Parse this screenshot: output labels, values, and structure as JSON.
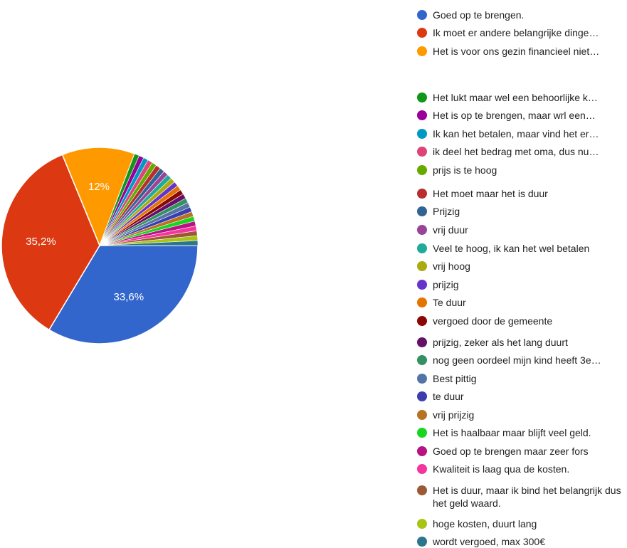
{
  "chart_data": {
    "type": "pie",
    "series": [
      {
        "name": "Goed op te brengen.",
        "value": 33.6,
        "label": "33,6%",
        "color": "#3366cc"
      },
      {
        "name": "Ik moet er andere belangrijke dinge…",
        "value": 35.2,
        "label": "35,2%",
        "color": "#dc3912"
      },
      {
        "name": "Het is voor ons gezin financieel niet…",
        "value": 12.0,
        "label": "12%",
        "color": "#ff9900"
      },
      {
        "name": "Het lukt maar wel een behoorlijke k…",
        "value": 0.8,
        "color": "#109618"
      },
      {
        "name": "Het is op te brengen, maar wrl een…",
        "value": 0.8,
        "color": "#990099"
      },
      {
        "name": "Ik kan het betalen, maar vind het er…",
        "value": 0.8,
        "color": "#0099c6"
      },
      {
        "name": "ik deel het bedrag met oma, dus nu…",
        "value": 0.8,
        "color": "#dd4477"
      },
      {
        "name": "prijs is te hoog",
        "value": 0.8,
        "color": "#66aa00"
      },
      {
        "name": "Het moet maar het is duur",
        "value": 0.8,
        "color": "#b82e2e"
      },
      {
        "name": "Prijzig",
        "value": 0.8,
        "color": "#316395"
      },
      {
        "name": "vrij duur",
        "value": 0.8,
        "color": "#994499"
      },
      {
        "name": "Veel te hoog, ik kan het wel betalen",
        "value": 0.8,
        "color": "#22aa99"
      },
      {
        "name": "vrij hoog",
        "value": 0.8,
        "color": "#aaaa11"
      },
      {
        "name": "prijzig",
        "value": 0.8,
        "color": "#6633cc"
      },
      {
        "name": "Te duur",
        "value": 0.8,
        "color": "#e67300"
      },
      {
        "name": "vergoed door de gemeente",
        "value": 0.8,
        "color": "#8b0707"
      },
      {
        "name": "prijzig, zeker als het lang duurt",
        "value": 0.8,
        "color": "#651067"
      },
      {
        "name": "nog geen oordeel mijn kind heeft 3e…",
        "value": 0.8,
        "color": "#329262"
      },
      {
        "name": "Best pittig",
        "value": 0.8,
        "color": "#5574a6"
      },
      {
        "name": "te duur",
        "value": 0.8,
        "color": "#3b3eac"
      },
      {
        "name": "vrij prijzig",
        "value": 0.8,
        "color": "#b77322"
      },
      {
        "name": "Het is haalbaar maar blijft veel geld.",
        "value": 0.8,
        "color": "#16d620"
      },
      {
        "name": "Goed op te brengen maar zeer fors",
        "value": 0.8,
        "color": "#b91383"
      },
      {
        "name": "Kwaliteit is laag qua de kosten.",
        "value": 0.8,
        "color": "#f4359e"
      },
      {
        "name": "Het is duur, maar ik bind het belangrijk dus het geld waard.",
        "value": 0.8,
        "color": "#9c5935"
      },
      {
        "name": "hoge kosten, duurt lang",
        "value": 0.8,
        "color": "#a9c413"
      },
      {
        "name": "wordt vergoed, max 300€",
        "value": 0.8,
        "color": "#2a778d"
      }
    ],
    "legend": "right"
  }
}
